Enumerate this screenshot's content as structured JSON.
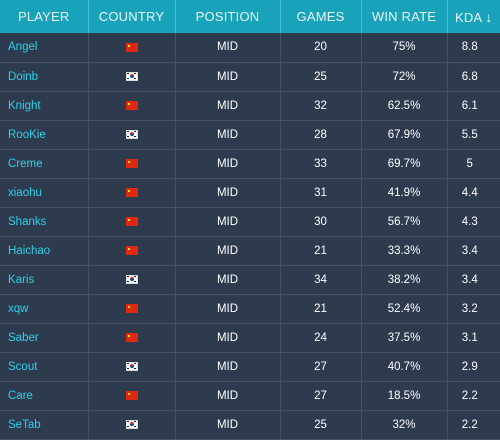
{
  "columns": {
    "player": "PLAYER",
    "country": "COUNTRY",
    "position": "POSITION",
    "games": "GAMES",
    "win_rate": "WIN RATE",
    "kda": "KDA",
    "sort_indicator": "↓"
  },
  "rows": [
    {
      "player": "Angel",
      "country": "cn",
      "position": "MID",
      "games": "20",
      "win_rate": "75%",
      "kda": "8.8"
    },
    {
      "player": "Doinb",
      "country": "kr",
      "position": "MID",
      "games": "25",
      "win_rate": "72%",
      "kda": "6.8"
    },
    {
      "player": "Knight",
      "country": "cn",
      "position": "MID",
      "games": "32",
      "win_rate": "62.5%",
      "kda": "6.1"
    },
    {
      "player": "RooKie",
      "country": "kr",
      "position": "MID",
      "games": "28",
      "win_rate": "67.9%",
      "kda": "5.5"
    },
    {
      "player": "Creme",
      "country": "cn",
      "position": "MID",
      "games": "33",
      "win_rate": "69.7%",
      "kda": "5"
    },
    {
      "player": "xiaohu",
      "country": "cn",
      "position": "MID",
      "games": "31",
      "win_rate": "41.9%",
      "kda": "4.4"
    },
    {
      "player": "Shanks",
      "country": "cn",
      "position": "MID",
      "games": "30",
      "win_rate": "56.7%",
      "kda": "4.3"
    },
    {
      "player": "Haichao",
      "country": "cn",
      "position": "MID",
      "games": "21",
      "win_rate": "33.3%",
      "kda": "3.4"
    },
    {
      "player": "Karis",
      "country": "kr",
      "position": "MID",
      "games": "34",
      "win_rate": "38.2%",
      "kda": "3.4"
    },
    {
      "player": "xqw",
      "country": "cn",
      "position": "MID",
      "games": "21",
      "win_rate": "52.4%",
      "kda": "3.2"
    },
    {
      "player": "Saber",
      "country": "cn",
      "position": "MID",
      "games": "24",
      "win_rate": "37.5%",
      "kda": "3.1"
    },
    {
      "player": "Scout",
      "country": "kr",
      "position": "MID",
      "games": "27",
      "win_rate": "40.7%",
      "kda": "2.9"
    },
    {
      "player": "Care",
      "country": "cn",
      "position": "MID",
      "games": "27",
      "win_rate": "18.5%",
      "kda": "2.2"
    },
    {
      "player": "SeTab",
      "country": "kr",
      "position": "MID",
      "games": "25",
      "win_rate": "32%",
      "kda": "2.2"
    }
  ],
  "flag_icons": {
    "cn": "china-flag-icon",
    "kr": "south-korea-flag-icon"
  },
  "colors": {
    "header_bg": "#18a3ba",
    "table_bg": "#2e3a4d",
    "player_link": "#2fd0e8"
  }
}
